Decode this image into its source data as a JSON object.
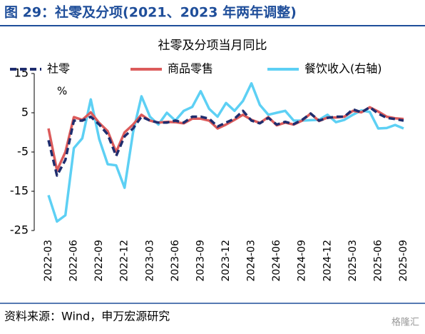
{
  "header": {
    "title": "图 29：社零及分项(2021、2023 年两年调整)"
  },
  "chart_data": {
    "type": "line",
    "title": "社零及分项当月同比",
    "y_unit_label": "%",
    "categories": [
      "2022-03",
      null,
      null,
      "2022-06",
      null,
      null,
      "2022-09",
      null,
      null,
      "2022-12",
      null,
      null,
      "2023-03",
      null,
      null,
      "2023-06",
      null,
      null,
      "2023-09",
      null,
      null,
      "2023-12",
      null,
      null,
      "2024-03",
      null,
      null,
      "2024-06",
      null,
      null,
      "2024-09",
      null,
      null,
      "2024-12",
      null,
      null,
      "2025-03",
      null,
      null,
      "2025-06",
      null,
      null,
      "2025-09"
    ],
    "series": [
      {
        "name": "社零",
        "color": "#1f2d6e",
        "dash": true,
        "values": [
          -2,
          -11,
          -7,
          3,
          3,
          4,
          2,
          -0.5,
          -6,
          -1,
          1,
          4,
          3,
          2.5,
          2.5,
          3,
          2.5,
          4,
          4,
          3.5,
          1.5,
          2.5,
          3.5,
          5.5,
          3,
          2.3,
          3.7,
          2,
          2.7,
          2.1,
          3.2,
          4.8,
          3,
          3.7,
          4,
          4,
          5.9,
          5.1,
          6.4,
          4.8,
          3.7,
          3.4,
          3
        ]
      },
      {
        "name": "商品零售",
        "color": "#dc5b5b",
        "dash": false,
        "values": [
          1,
          -9.7,
          -5,
          3.9,
          3.2,
          5.1,
          2.4,
          0.3,
          -5,
          0,
          2,
          4.5,
          3,
          2.5,
          2.7,
          2.6,
          2.3,
          3.5,
          3.5,
          3,
          1,
          2,
          3.2,
          4.5,
          3.2,
          2.4,
          3.9,
          1.8,
          2.5,
          2,
          3,
          4.8,
          2.9,
          3.8,
          3.8,
          4,
          5.5,
          5.1,
          6.4,
          5.3,
          4,
          3.6,
          3.4
        ]
      },
      {
        "name": "餐饮收入(右轴)",
        "color": "#5dd0f4",
        "dash": false,
        "values": [
          -16,
          -22.7,
          -21.1,
          -4,
          -1.5,
          8.4,
          -1.7,
          -8.1,
          -8.4,
          -14.1,
          0,
          9.2,
          4,
          2,
          5,
          3,
          5.5,
          6.5,
          10.5,
          6,
          4,
          7.5,
          5.5,
          8,
          12.5,
          7,
          4.5,
          5,
          5.5,
          3,
          3,
          3.1,
          3.2,
          4.5,
          2.6,
          3.2,
          4.5,
          5.6,
          5.2,
          1,
          1.1,
          1.9,
          1
        ]
      }
    ],
    "ylim": [
      -25,
      15
    ],
    "yticks": [
      15,
      5,
      -5,
      -15,
      -25
    ]
  },
  "footer": {
    "source": "资料来源：Wind，申万宏源研究",
    "watermark": "格隆汇"
  }
}
